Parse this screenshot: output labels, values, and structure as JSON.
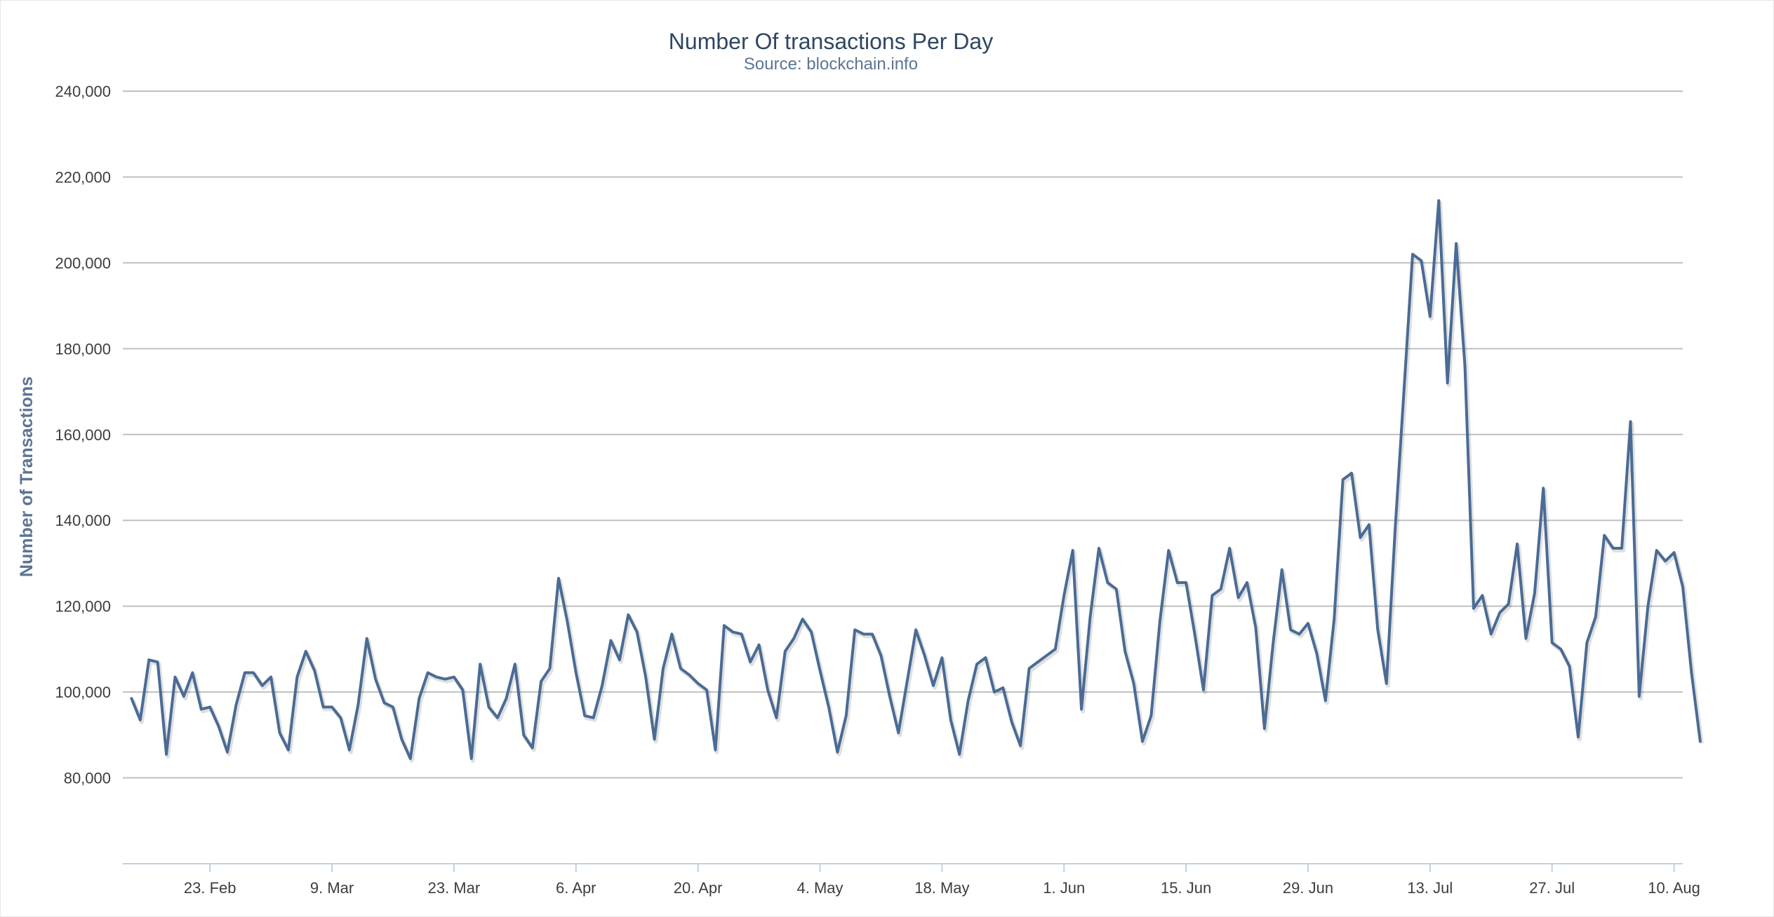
{
  "chart_data": {
    "type": "line",
    "title": "Number Of transactions Per Day",
    "subtitle": "Source: blockchain.info",
    "ylabel": "Number of Transactions",
    "ylim": [
      60000,
      240000
    ],
    "y_ticks": [
      80000,
      100000,
      120000,
      140000,
      160000,
      180000,
      200000,
      220000,
      240000
    ],
    "y_tick_labels": [
      "80,000",
      "100,000",
      "120,000",
      "140,000",
      "160,000",
      "180,000",
      "200,000",
      "220,000",
      "240,000"
    ],
    "x_range": [
      "2014-02-13",
      "2014-08-11"
    ],
    "x_ticks": [
      "2014-02-23",
      "2014-03-09",
      "2014-03-23",
      "2014-04-06",
      "2014-04-20",
      "2014-05-04",
      "2014-05-18",
      "2014-06-01",
      "2014-06-15",
      "2014-06-29",
      "2014-07-13",
      "2014-07-27",
      "2014-08-10"
    ],
    "x_tick_labels": [
      "23. Feb",
      "9. Mar",
      "23. Mar",
      "6. Apr",
      "20. Apr",
      "4. May",
      "18. May",
      "1. Jun",
      "15. Jun",
      "29. Jun",
      "13. Jul",
      "27. Jul",
      "10. Aug"
    ],
    "grid": true,
    "legend": "none",
    "line_color": "#4a6b94",
    "series": [
      {
        "start_date": "2014-02-14",
        "values": [
          98500,
          93500,
          107500,
          107000,
          85500,
          103500,
          99000,
          104500,
          96000,
          96500,
          92000,
          86000,
          97000,
          104500,
          104500,
          101500,
          103500,
          90500,
          86500,
          103500,
          109500,
          105000,
          96500,
          96500,
          94000,
          86500,
          97000,
          112500,
          103000,
          97500,
          96500,
          89000,
          84500,
          98500,
          104500,
          103500,
          103000,
          103500,
          100500,
          84500,
          106500,
          96500,
          94000,
          98500,
          106500,
          90000,
          87000,
          102500,
          105500,
          126500,
          116500,
          104500,
          94500,
          94000,
          101500,
          112000,
          107500,
          118000,
          114000,
          103500,
          89000,
          105500,
          113500,
          105500,
          104000,
          102000,
          100500,
          86500,
          115500,
          114000,
          113500,
          107000,
          111000,
          100500,
          94000,
          109500,
          112500,
          117000,
          114000,
          105000,
          96500,
          86000,
          94500,
          114500,
          113500,
          113500,
          108500,
          99000,
          90500,
          102500,
          114500,
          108500,
          101500,
          108000,
          93500,
          85500,
          98000,
          106500,
          108000,
          100000,
          101000,
          93000,
          87500,
          105500,
          107000,
          108500,
          110000,
          122500,
          133000,
          96000,
          117500,
          133500,
          125500,
          124000,
          109500,
          102000,
          88500,
          94500,
          116500,
          133000,
          125500,
          125500,
          113500,
          100500,
          122500,
          124000,
          133500,
          122000,
          125500,
          115000,
          91500,
          111500,
          128500,
          114500,
          113500,
          116000,
          109000,
          98000,
          117000,
          149500,
          151000,
          136000,
          139000,
          114500,
          102000,
          138000,
          170000,
          202000,
          200500,
          187500,
          214500,
          172000,
          204500,
          176000,
          119500,
          122500,
          113500,
          118500,
          120500,
          134500,
          112500,
          123000,
          147500,
          111500,
          110000,
          106000,
          89500,
          111500,
          117500,
          136500,
          133500,
          133500,
          163000,
          99000,
          120000,
          133000,
          130500,
          132500,
          124500,
          104500,
          88500
        ]
      }
    ]
  }
}
